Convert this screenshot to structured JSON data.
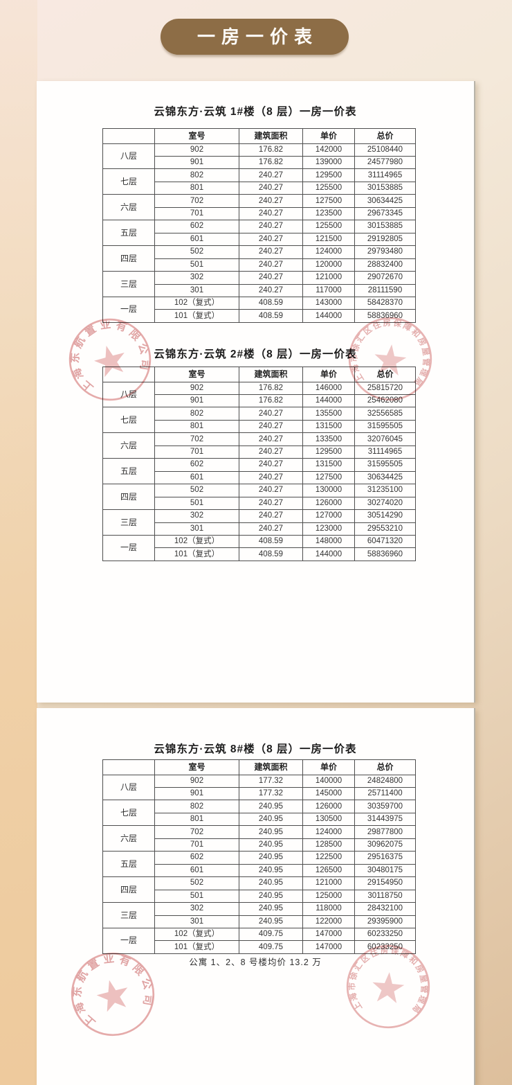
{
  "banner": {
    "label": "一房一价表"
  },
  "tables": [
    {
      "title": "云锦东方·云筑 1#楼（8 层）一房一价表",
      "columns": [
        "室号",
        "建筑面积",
        "单价",
        "总价"
      ],
      "floor_groups": [
        {
          "floor": "八层",
          "rows": [
            [
              "902",
              "176.82",
              "142000",
              "25108440"
            ],
            [
              "901",
              "176.82",
              "139000",
              "24577980"
            ]
          ]
        },
        {
          "floor": "七层",
          "rows": [
            [
              "802",
              "240.27",
              "129500",
              "31114965"
            ],
            [
              "801",
              "240.27",
              "125500",
              "30153885"
            ]
          ]
        },
        {
          "floor": "六层",
          "rows": [
            [
              "702",
              "240.27",
              "127500",
              "30634425"
            ],
            [
              "701",
              "240.27",
              "123500",
              "29673345"
            ]
          ]
        },
        {
          "floor": "五层",
          "rows": [
            [
              "602",
              "240.27",
              "125500",
              "30153885"
            ],
            [
              "601",
              "240.27",
              "121500",
              "29192805"
            ]
          ]
        },
        {
          "floor": "四层",
          "rows": [
            [
              "502",
              "240.27",
              "124000",
              "29793480"
            ],
            [
              "501",
              "240.27",
              "120000",
              "28832400"
            ]
          ]
        },
        {
          "floor": "三层",
          "rows": [
            [
              "302",
              "240.27",
              "121000",
              "29072670"
            ],
            [
              "301",
              "240.27",
              "117000",
              "28111590"
            ]
          ]
        },
        {
          "floor": "一层",
          "rows": [
            [
              "102（复式）",
              "408.59",
              "143000",
              "58428370"
            ],
            [
              "101（复式）",
              "408.59",
              "144000",
              "58836960"
            ]
          ]
        }
      ]
    },
    {
      "title": "云锦东方·云筑 2#楼（8 层）一房一价表",
      "columns": [
        "室号",
        "建筑面积",
        "单价",
        "总价"
      ],
      "floor_groups": [
        {
          "floor": "八层",
          "rows": [
            [
              "902",
              "176.82",
              "146000",
              "25815720"
            ],
            [
              "901",
              "176.82",
              "144000",
              "25462080"
            ]
          ]
        },
        {
          "floor": "七层",
          "rows": [
            [
              "802",
              "240.27",
              "135500",
              "32556585"
            ],
            [
              "801",
              "240.27",
              "131500",
              "31595505"
            ]
          ]
        },
        {
          "floor": "六层",
          "rows": [
            [
              "702",
              "240.27",
              "133500",
              "32076045"
            ],
            [
              "701",
              "240.27",
              "129500",
              "31114965"
            ]
          ]
        },
        {
          "floor": "五层",
          "rows": [
            [
              "602",
              "240.27",
              "131500",
              "31595505"
            ],
            [
              "601",
              "240.27",
              "127500",
              "30634425"
            ]
          ]
        },
        {
          "floor": "四层",
          "rows": [
            [
              "502",
              "240.27",
              "130000",
              "31235100"
            ],
            [
              "501",
              "240.27",
              "126000",
              "30274020"
            ]
          ]
        },
        {
          "floor": "三层",
          "rows": [
            [
              "302",
              "240.27",
              "127000",
              "30514290"
            ],
            [
              "301",
              "240.27",
              "123000",
              "29553210"
            ]
          ]
        },
        {
          "floor": "一层",
          "rows": [
            [
              "102（复式）",
              "408.59",
              "148000",
              "60471320"
            ],
            [
              "101（复式）",
              "408.59",
              "144000",
              "58836960"
            ]
          ]
        }
      ]
    },
    {
      "title": "云锦东方·云筑 8#楼（8 层）一房一价表",
      "columns": [
        "室号",
        "建筑面积",
        "单价",
        "总价"
      ],
      "floor_groups": [
        {
          "floor": "八层",
          "rows": [
            [
              "902",
              "177.32",
              "140000",
              "24824800"
            ],
            [
              "901",
              "177.32",
              "145000",
              "25711400"
            ]
          ]
        },
        {
          "floor": "七层",
          "rows": [
            [
              "802",
              "240.95",
              "126000",
              "30359700"
            ],
            [
              "801",
              "240.95",
              "130500",
              "31443975"
            ]
          ]
        },
        {
          "floor": "六层",
          "rows": [
            [
              "702",
              "240.95",
              "124000",
              "29877800"
            ],
            [
              "701",
              "240.95",
              "128500",
              "30962075"
            ]
          ]
        },
        {
          "floor": "五层",
          "rows": [
            [
              "602",
              "240.95",
              "122500",
              "29516375"
            ],
            [
              "601",
              "240.95",
              "126500",
              "30480175"
            ]
          ]
        },
        {
          "floor": "四层",
          "rows": [
            [
              "502",
              "240.95",
              "121000",
              "29154950"
            ],
            [
              "501",
              "240.95",
              "125000",
              "30118750"
            ]
          ]
        },
        {
          "floor": "三层",
          "rows": [
            [
              "302",
              "240.95",
              "118000",
              "28432100"
            ],
            [
              "301",
              "240.95",
              "122000",
              "29395900"
            ]
          ]
        },
        {
          "floor": "一层",
          "rows": [
            [
              "102（复式）",
              "409.75",
              "147000",
              "60233250"
            ],
            [
              "101（复式）",
              "409.75",
              "147000",
              "60233250"
            ]
          ]
        }
      ]
    }
  ],
  "note": "公寓 1、2、8 号楼均价 13.2 万",
  "stamps": {
    "company_seal_text": "上海东航置业有限公司",
    "government_seal_text": "上海市徐汇区住房保障和房屋管理局"
  },
  "colors": {
    "banner_brown": "#8d6d46",
    "seal_red": "#d06a6a",
    "background_tan": "#ddbf9c"
  }
}
